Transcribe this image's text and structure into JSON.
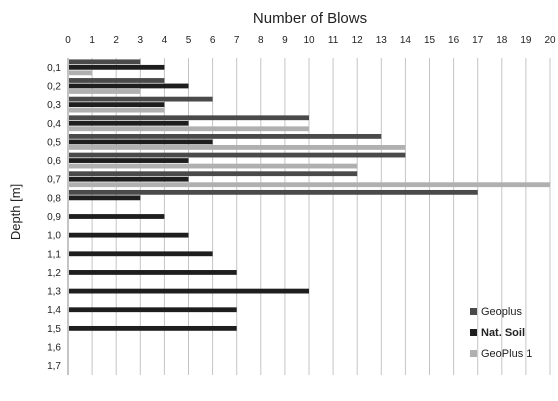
{
  "chart_data": {
    "type": "bar",
    "orientation": "horizontal",
    "title": "Number of Blows",
    "xlabel": "",
    "ylabel": "Depth [m]",
    "xlim": [
      0,
      20
    ],
    "x_ticks": [
      "0",
      "1",
      "2",
      "3",
      "4",
      "5",
      "6",
      "7",
      "8",
      "9",
      "10",
      "11",
      "12",
      "13",
      "14",
      "15",
      "16",
      "17",
      "18",
      "19",
      "20"
    ],
    "categories": [
      "0,1",
      "0,2",
      "0,3",
      "0,4",
      "0,5",
      "0,6",
      "0,7",
      "0,8",
      "0,9",
      "1,0",
      "1,1",
      "1,2",
      "1,3",
      "1,4",
      "1,5",
      "1,6",
      "1,7"
    ],
    "grid": "vertical",
    "legend_position": "bottom-right",
    "series": [
      {
        "name": "Geoplus",
        "color": "#4a4a4a",
        "bold": false,
        "values": [
          3,
          4,
          6,
          10,
          13,
          14,
          12,
          17,
          null,
          null,
          null,
          null,
          null,
          null,
          null,
          null,
          null
        ]
      },
      {
        "name": "Nat. Soil",
        "color": "#1e1e1e",
        "bold": true,
        "values": [
          4,
          5,
          4,
          5,
          6,
          5,
          5,
          3,
          4,
          5,
          6,
          7,
          10,
          7,
          7,
          null,
          null
        ]
      },
      {
        "name": "GeoPlus 1",
        "color": "#b0b0b0",
        "bold": false,
        "values": [
          1,
          3,
          4,
          10,
          14,
          12,
          20,
          null,
          null,
          null,
          null,
          null,
          null,
          null,
          null,
          null,
          null
        ]
      }
    ]
  }
}
